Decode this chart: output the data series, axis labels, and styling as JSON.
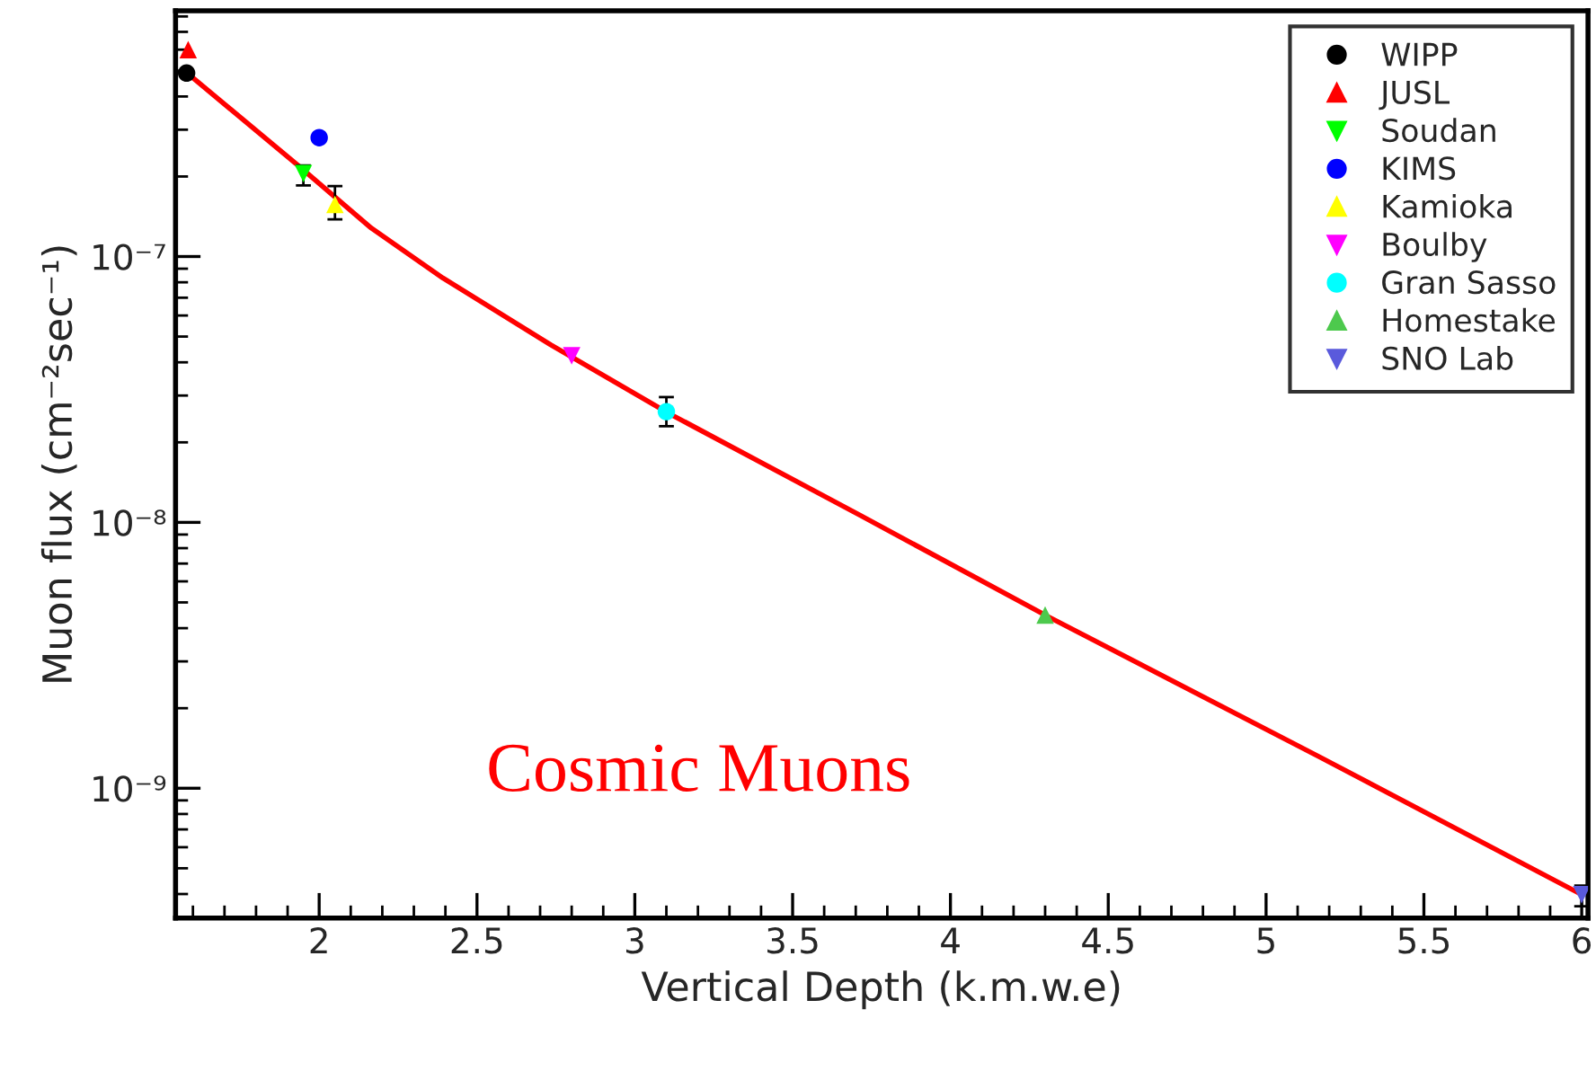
{
  "chart_data": {
    "type": "scatter",
    "xlabel": "Vertical Depth (k.m.w.e)",
    "ylabel": "Muon flux (cm⁻²sec⁻¹)",
    "log": "y",
    "xlim": [
      1.545,
      6.02
    ],
    "ylim": [
      3.25e-10,
      8.4e-07
    ],
    "xticks": [
      2,
      2.5,
      3,
      3.5,
      4,
      4.5,
      5,
      5.5,
      6
    ],
    "yticks": [
      {
        "value": 1e-09,
        "label": "10⁻⁹"
      },
      {
        "value": 1e-08,
        "label": "10⁻⁸"
      },
      {
        "value": 1e-07,
        "label": "10⁻⁷"
      }
    ],
    "grid": false,
    "legend": "top right",
    "annotations": [
      "Cosmic Muons"
    ],
    "series": [
      {
        "type": "line",
        "color": "#ff0000",
        "marker": "none",
        "x": [
          1.6,
          1.9375,
          2.165,
          2.392,
          2.733,
          3.108,
          3.716,
          4.3125,
          5.165,
          6.0
        ],
        "values": [
          4.7e-07,
          2.18e-07,
          1.28e-07,
          8.3e-08,
          4.66e-08,
          2.57e-08,
          1.06e-08,
          4.4e-09,
          1.32e-09,
          3.98e-10
        ]
      },
      {
        "name": "WIPP",
        "color": "#000000",
        "marker": "circle",
        "x": [
          1.58
        ],
        "values": [
          4.9e-07
        ]
      },
      {
        "name": "JUSL",
        "color": "#ff0000",
        "marker": "triangle",
        "x": [
          1.585
        ],
        "values": [
          6e-07
        ]
      },
      {
        "name": "Soudan",
        "color": "#00ff00",
        "marker": "triangle_down",
        "x": [
          1.95
        ],
        "values": [
          2.05e-07
        ],
        "errors": [
          [
            1.85e-07,
            2.2e-07
          ]
        ]
      },
      {
        "name": "KIMS",
        "color": "#0000ff",
        "marker": "circle",
        "x": [
          2.0
        ],
        "values": [
          2.8e-07
        ]
      },
      {
        "name": "Kamioka",
        "color": "#ffff00",
        "marker": "triangle",
        "x": [
          2.05
        ],
        "values": [
          1.57e-07
        ],
        "errors": [
          [
            1.38e-07,
            1.84e-07
          ]
        ]
      },
      {
        "name": "Boulby",
        "color": "#ff00ff",
        "marker": "triangle_down",
        "x": [
          2.8
        ],
        "values": [
          4.23e-08
        ]
      },
      {
        "name": "Gran Sasso",
        "color": "#00ffff",
        "marker": "circle",
        "x": [
          3.1
        ],
        "values": [
          2.61e-08
        ],
        "errors": [
          [
            2.3e-08,
            2.96e-08
          ]
        ]
      },
      {
        "name": "Homestake",
        "color": "#4dc94d",
        "marker": "triangle",
        "x": [
          4.3
        ],
        "values": [
          4.48e-09
        ]
      },
      {
        "name": "SNO Lab",
        "color": "#5a5adc",
        "marker": "triangle_down",
        "x": [
          6.0
        ],
        "values": [
          3.98e-10
        ],
        "errors": [
          [
            3.6e-10,
            4.3e-10
          ]
        ]
      }
    ]
  }
}
